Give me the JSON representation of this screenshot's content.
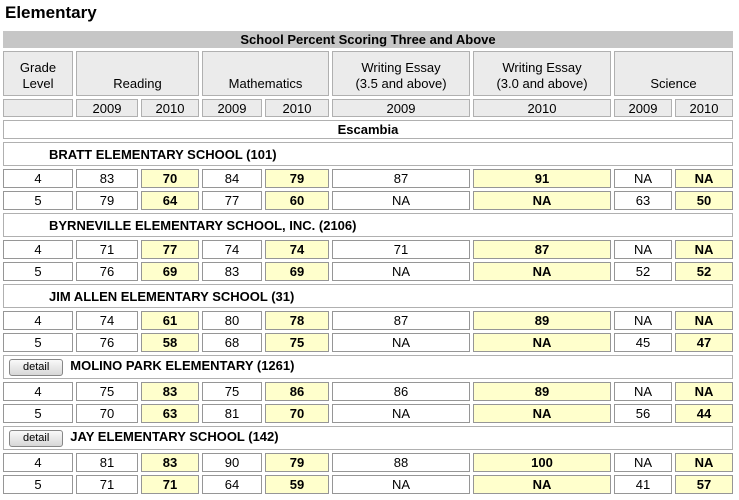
{
  "page_title": "Elementary",
  "table": {
    "title": "School Percent Scoring Three and Above",
    "grade_level_header": "Grade Level",
    "column_groups": [
      {
        "label": "Reading",
        "sublabel": "",
        "span": 2
      },
      {
        "label": "Mathematics",
        "sublabel": "",
        "span": 2
      },
      {
        "label": "Writing Essay",
        "sublabel": "(3.5 and above)",
        "span": 1
      },
      {
        "label": "Writing Essay",
        "sublabel": "(3.0 and above)",
        "span": 1
      },
      {
        "label": "Science",
        "sublabel": "",
        "span": 2
      }
    ],
    "year_headers": [
      "2009",
      "2010",
      "2009",
      "2010",
      "2009",
      "2010",
      "2009",
      "2010"
    ],
    "highlighted_columns": [
      1,
      3,
      5,
      7
    ],
    "district": "Escambia",
    "detail_button_label": "detail",
    "schools": [
      {
        "name": "BRATT ELEMENTARY SCHOOL (101)",
        "detail_button": false,
        "rows": [
          {
            "grade": "4",
            "values": [
              "83",
              "70",
              "84",
              "79",
              "87",
              "91",
              "NA",
              "NA"
            ]
          },
          {
            "grade": "5",
            "values": [
              "79",
              "64",
              "77",
              "60",
              "NA",
              "NA",
              "63",
              "50"
            ]
          }
        ]
      },
      {
        "name": "BYRNEVILLE ELEMENTARY SCHOOL, INC. (2106)",
        "detail_button": false,
        "rows": [
          {
            "grade": "4",
            "values": [
              "71",
              "77",
              "74",
              "74",
              "71",
              "87",
              "NA",
              "NA"
            ]
          },
          {
            "grade": "5",
            "values": [
              "76",
              "69",
              "83",
              "69",
              "NA",
              "NA",
              "52",
              "52"
            ]
          }
        ]
      },
      {
        "name": "JIM ALLEN ELEMENTARY SCHOOL (31)",
        "detail_button": false,
        "rows": [
          {
            "grade": "4",
            "values": [
              "74",
              "61",
              "80",
              "78",
              "87",
              "89",
              "NA",
              "NA"
            ]
          },
          {
            "grade": "5",
            "values": [
              "76",
              "58",
              "68",
              "75",
              "NA",
              "NA",
              "45",
              "47"
            ]
          }
        ]
      },
      {
        "name": "MOLINO PARK ELEMENTARY (1261)",
        "detail_button": true,
        "rows": [
          {
            "grade": "4",
            "values": [
              "75",
              "83",
              "75",
              "86",
              "86",
              "89",
              "NA",
              "NA"
            ]
          },
          {
            "grade": "5",
            "values": [
              "70",
              "63",
              "81",
              "70",
              "NA",
              "NA",
              "56",
              "44"
            ]
          }
        ]
      },
      {
        "name": "JAY ELEMENTARY SCHOOL (142)",
        "detail_button": true,
        "rows": [
          {
            "grade": "4",
            "values": [
              "81",
              "83",
              "90",
              "79",
              "88",
              "100",
              "NA",
              "NA"
            ]
          },
          {
            "grade": "5",
            "values": [
              "71",
              "71",
              "64",
              "59",
              "NA",
              "NA",
              "41",
              "57"
            ]
          }
        ]
      }
    ]
  },
  "colors": {
    "title_bar_bg": "#c6c6c6",
    "header_cell_bg": "#ebebeb",
    "highlight_bg": "#ffffcc",
    "data_cell_border": "#969696",
    "header_cell_border": "#b0b0b0"
  }
}
